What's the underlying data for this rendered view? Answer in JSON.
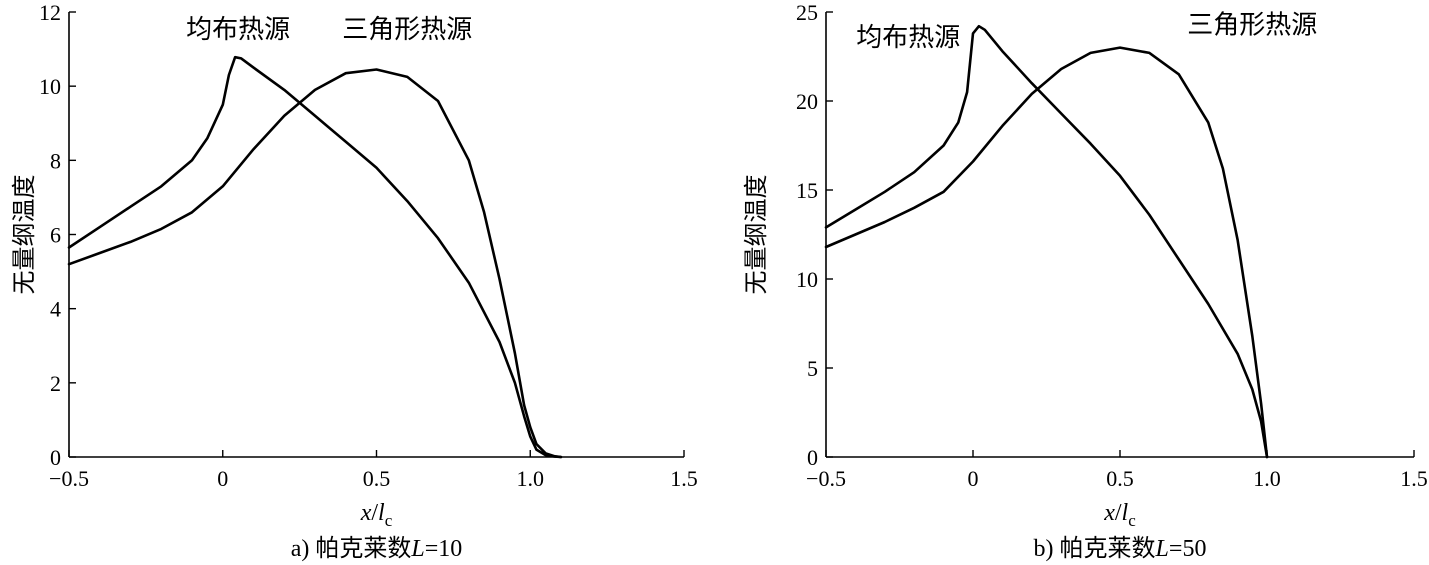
{
  "chart_data": [
    {
      "type": "line",
      "caption_prefix": "a) 帕克莱数",
      "caption_var": "L",
      "caption_suffix": "=10",
      "xlabel_main": "x",
      "xlabel_slash": "/",
      "xlabel_l": "l",
      "xlabel_sub": "c",
      "ylabel": "无量纲温度",
      "xlim": [
        -0.5,
        1.5
      ],
      "ylim": [
        0,
        12
      ],
      "xticks": [
        -0.5,
        0,
        0.5,
        1.0,
        1.5
      ],
      "xtick_labels": [
        "−0.5",
        "0",
        "0.5",
        "1.0",
        "1.5"
      ],
      "yticks": [
        0,
        2,
        4,
        6,
        8,
        10,
        12
      ],
      "ytick_labels": [
        "0",
        "2",
        "4",
        "6",
        "8",
        "10",
        "12"
      ],
      "grid": false,
      "annotations": [
        {
          "text": "均布热源",
          "x": 0.05,
          "y": 11.3
        },
        {
          "text": "三角形热源",
          "x": 0.6,
          "y": 11.3
        }
      ],
      "series": [
        {
          "x": [
            -0.5,
            -0.4,
            -0.3,
            -0.2,
            -0.1,
            -0.05,
            0.0,
            0.02,
            0.04,
            0.06,
            0.1,
            0.2,
            0.3,
            0.4,
            0.5,
            0.6,
            0.7,
            0.8,
            0.9,
            0.95,
            0.98,
            1.0,
            1.02,
            1.05,
            1.08,
            1.1
          ],
          "y": [
            5.65,
            6.2,
            6.75,
            7.3,
            8.0,
            8.6,
            9.5,
            10.3,
            10.78,
            10.75,
            10.5,
            9.9,
            9.2,
            8.5,
            7.8,
            6.9,
            5.9,
            4.7,
            3.1,
            2.0,
            1.1,
            0.55,
            0.2,
            0.05,
            0.01,
            0.0
          ]
        },
        {
          "x": [
            -0.5,
            -0.4,
            -0.3,
            -0.2,
            -0.1,
            0.0,
            0.1,
            0.2,
            0.3,
            0.4,
            0.5,
            0.6,
            0.7,
            0.8,
            0.85,
            0.9,
            0.95,
            0.98,
            1.0,
            1.02,
            1.05,
            1.08,
            1.1
          ],
          "y": [
            5.2,
            5.5,
            5.8,
            6.15,
            6.6,
            7.3,
            8.3,
            9.2,
            9.9,
            10.35,
            10.45,
            10.25,
            9.6,
            8.0,
            6.6,
            4.8,
            2.8,
            1.4,
            0.8,
            0.35,
            0.1,
            0.02,
            0.0
          ]
        }
      ]
    },
    {
      "type": "line",
      "caption_prefix": "b) 帕克莱数",
      "caption_var": "L",
      "caption_suffix": "=50",
      "xlabel_main": "x",
      "xlabel_slash": "/",
      "xlabel_l": "l",
      "xlabel_sub": "c",
      "ylabel": "无量纲温度",
      "xlim": [
        -0.5,
        1.5
      ],
      "ylim": [
        0,
        25
      ],
      "xticks": [
        -0.5,
        0,
        0.5,
        1.0,
        1.5
      ],
      "xtick_labels": [
        "−0.5",
        "0",
        "0.5",
        "1.0",
        "1.5"
      ],
      "yticks": [
        0,
        5,
        10,
        15,
        20,
        25
      ],
      "ytick_labels": [
        "0",
        "5",
        "10",
        "15",
        "20",
        "25"
      ],
      "grid": false,
      "annotations": [
        {
          "text": "均布热源",
          "x": -0.22,
          "y": 23.1
        },
        {
          "text": "三角形热源",
          "x": 0.95,
          "y": 23.8
        }
      ],
      "series": [
        {
          "x": [
            -0.5,
            -0.4,
            -0.3,
            -0.2,
            -0.1,
            -0.05,
            -0.02,
            0.0,
            0.02,
            0.04,
            0.1,
            0.2,
            0.3,
            0.4,
            0.5,
            0.6,
            0.7,
            0.8,
            0.9,
            0.95,
            0.98,
            1.0
          ],
          "y": [
            12.9,
            13.9,
            14.9,
            16.0,
            17.5,
            18.8,
            20.5,
            23.8,
            24.2,
            24.0,
            22.8,
            21.0,
            19.3,
            17.6,
            15.8,
            13.6,
            11.1,
            8.6,
            5.8,
            3.8,
            2.0,
            0.0
          ]
        },
        {
          "x": [
            -0.5,
            -0.4,
            -0.3,
            -0.2,
            -0.1,
            0.0,
            0.1,
            0.2,
            0.3,
            0.4,
            0.5,
            0.6,
            0.7,
            0.8,
            0.85,
            0.9,
            0.95,
            0.98,
            1.0
          ],
          "y": [
            11.8,
            12.5,
            13.2,
            14.0,
            14.9,
            16.6,
            18.6,
            20.4,
            21.8,
            22.7,
            23.0,
            22.7,
            21.5,
            18.8,
            16.2,
            12.2,
            6.8,
            3.0,
            0.0
          ]
        }
      ]
    }
  ]
}
